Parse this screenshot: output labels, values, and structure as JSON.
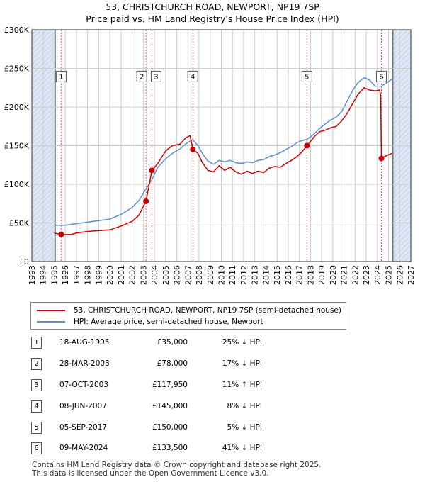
{
  "title": {
    "line1": "53, CHRISTCHURCH ROAD, NEWPORT, NP19 7SP",
    "line2": "Price paid vs. HM Land Registry's House Price Index (HPI)"
  },
  "colors": {
    "property": "#cc0000",
    "hpi": "#5b8fcc",
    "shade": "#dce6f5",
    "vline": "#e06060"
  },
  "chart_data": {
    "type": "line",
    "title": "Price paid vs. HM Land Registry's House Price Index (HPI)",
    "xlabel": "",
    "ylabel": "",
    "xlim": [
      1993,
      2027
    ],
    "ylim": [
      0,
      300000
    ],
    "x_ticks": [
      "1993",
      "1994",
      "1995",
      "1996",
      "1997",
      "1998",
      "1999",
      "2000",
      "2001",
      "2002",
      "2003",
      "2004",
      "2005",
      "2006",
      "2007",
      "2008",
      "2009",
      "2010",
      "2011",
      "2012",
      "2013",
      "2014",
      "2015",
      "2016",
      "2017",
      "2018",
      "2019",
      "2020",
      "2021",
      "2022",
      "2023",
      "2024",
      "2025",
      "2026",
      "2027"
    ],
    "y_ticks": [
      {
        "value": 0,
        "label": "£0"
      },
      {
        "value": 50000,
        "label": "£50K"
      },
      {
        "value": 100000,
        "label": "£100K"
      },
      {
        "value": 150000,
        "label": "£150K"
      },
      {
        "value": 200000,
        "label": "£200K"
      },
      {
        "value": 250000,
        "label": "£250K"
      },
      {
        "value": 300000,
        "label": "£300K"
      }
    ],
    "shaded_ranges": [
      [
        1993.0,
        1995.1
      ],
      [
        2025.4,
        2027.0
      ]
    ],
    "series": [
      {
        "name": "53, CHRISTCHURCH ROAD, NEWPORT, NP19 7SP (semi-detached house)",
        "x": [
          1995.0,
          1995.63,
          1996.5,
          1997.0,
          1998.0,
          1999.0,
          2000.0,
          2001.0,
          2002.0,
          2002.6,
          2003.24,
          2003.77,
          2004.3,
          2005.0,
          2005.6,
          2006.3,
          2006.8,
          2007.2,
          2007.44,
          2007.9,
          2008.3,
          2008.8,
          2009.3,
          2009.8,
          2010.3,
          2010.8,
          2011.3,
          2011.8,
          2012.3,
          2012.8,
          2013.3,
          2013.8,
          2014.3,
          2014.8,
          2015.3,
          2015.8,
          2016.3,
          2016.8,
          2017.3,
          2017.68,
          2018.3,
          2018.8,
          2019.3,
          2019.8,
          2020.3,
          2020.8,
          2021.3,
          2021.8,
          2022.3,
          2022.8,
          2023.3,
          2023.8,
          2024.2,
          2024.3,
          2024.36,
          2024.8,
          2025.3
        ],
        "values": [
          37000,
          35000,
          35000,
          37000,
          39000,
          40000,
          41000,
          46000,
          52000,
          60000,
          78000,
          117950,
          127000,
          143000,
          150000,
          152000,
          160000,
          163000,
          145000,
          140000,
          128000,
          118000,
          116000,
          124000,
          118000,
          122000,
          116000,
          113000,
          117000,
          114000,
          117000,
          115000,
          121000,
          123000,
          122000,
          127000,
          131000,
          136000,
          143000,
          150000,
          161000,
          168000,
          170000,
          173000,
          175000,
          182000,
          192000,
          205000,
          217000,
          225000,
          222000,
          221000,
          222000,
          215000,
          133500,
          137000,
          140000
        ]
      },
      {
        "name": "HPI: Average price, semi-detached house, Newport",
        "x": [
          1995.0,
          1996.0,
          1997.0,
          1998.0,
          1999.0,
          2000.0,
          2001.0,
          2002.0,
          2002.6,
          2003.24,
          2003.77,
          2004.3,
          2005.0,
          2005.6,
          2006.3,
          2006.8,
          2007.2,
          2007.44,
          2007.9,
          2008.3,
          2008.8,
          2009.3,
          2009.8,
          2010.3,
          2010.8,
          2011.3,
          2011.8,
          2012.3,
          2012.8,
          2013.3,
          2013.8,
          2014.3,
          2014.8,
          2015.3,
          2015.8,
          2016.3,
          2016.8,
          2017.3,
          2017.68,
          2018.3,
          2018.8,
          2019.3,
          2019.8,
          2020.3,
          2020.8,
          2021.3,
          2021.8,
          2022.3,
          2022.8,
          2023.3,
          2023.8,
          2024.36,
          2024.8,
          2025.3
        ],
        "values": [
          47000,
          47000,
          49000,
          51000,
          53000,
          55000,
          61000,
          70000,
          79000,
          94000,
          106000,
          122000,
          133000,
          140000,
          146000,
          152000,
          156000,
          158000,
          150000,
          140000,
          130000,
          126000,
          131000,
          129000,
          131000,
          128000,
          127000,
          129000,
          128000,
          131000,
          132000,
          136000,
          138000,
          141000,
          145000,
          149000,
          154000,
          157000,
          158000,
          165000,
          172000,
          178000,
          183000,
          187000,
          194000,
          208000,
          222000,
          232000,
          238000,
          235000,
          227000,
          227000,
          231000,
          236000
        ]
      }
    ],
    "sales": [
      {
        "num": "1",
        "x": 1995.63,
        "value": 35000
      },
      {
        "num": "2",
        "x": 2003.24,
        "value": 78000
      },
      {
        "num": "3",
        "x": 2003.77,
        "value": 117950
      },
      {
        "num": "4",
        "x": 2007.44,
        "value": 145000
      },
      {
        "num": "5",
        "x": 2017.68,
        "value": 150000
      },
      {
        "num": "6",
        "x": 2024.36,
        "value": 133500
      }
    ]
  },
  "legend": {
    "property_label": "53, CHRISTCHURCH ROAD, NEWPORT, NP19 7SP (semi-detached house)",
    "hpi_label": "HPI: Average price, semi-detached house, Newport"
  },
  "transactions": [
    {
      "num": "1",
      "date": "18-AUG-1995",
      "price": "£35,000",
      "hpi": "25% ↓ HPI"
    },
    {
      "num": "2",
      "date": "28-MAR-2003",
      "price": "£78,000",
      "hpi": "17% ↓ HPI"
    },
    {
      "num": "3",
      "date": "07-OCT-2003",
      "price": "£117,950",
      "hpi": "11% ↑ HPI"
    },
    {
      "num": "4",
      "date": "08-JUN-2007",
      "price": "£145,000",
      "hpi": "8% ↓ HPI"
    },
    {
      "num": "5",
      "date": "05-SEP-2017",
      "price": "£150,000",
      "hpi": "5% ↓ HPI"
    },
    {
      "num": "6",
      "date": "09-MAY-2024",
      "price": "£133,500",
      "hpi": "41% ↓ HPI"
    }
  ],
  "footer": {
    "line1": "Contains HM Land Registry data © Crown copyright and database right 2025.",
    "line2": "This data is licensed under the Open Government Licence v3.0."
  }
}
